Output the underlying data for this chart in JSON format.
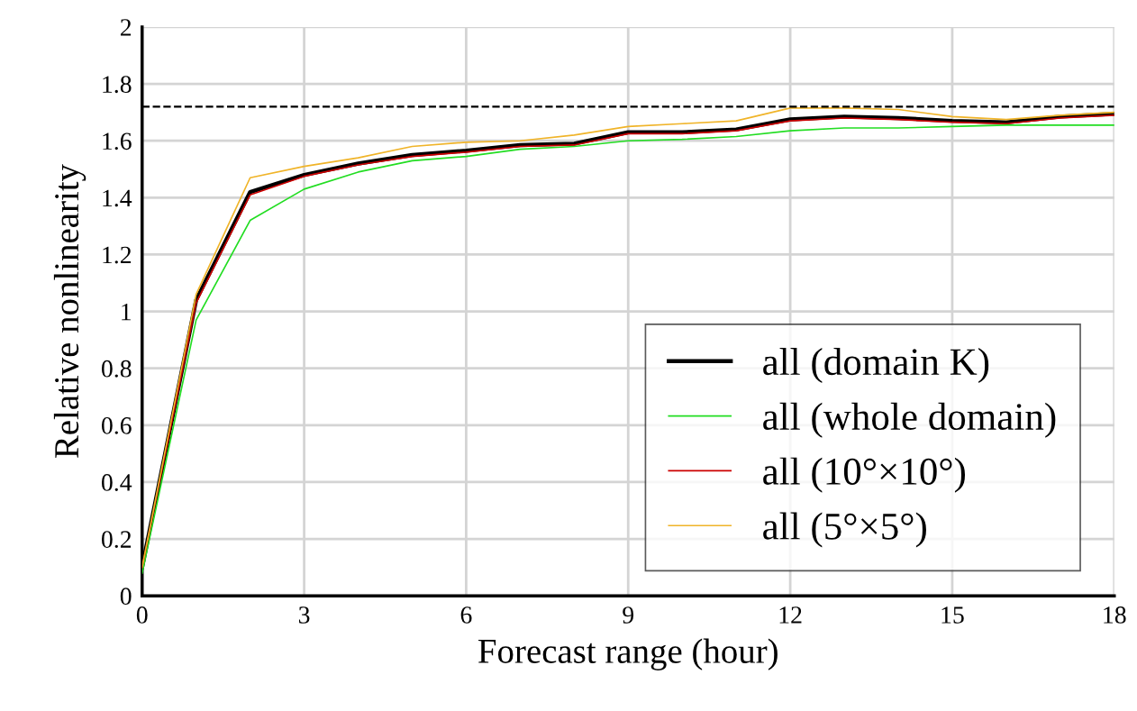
{
  "chart_data": {
    "type": "line",
    "xlabel": "Forecast range (hour)",
    "ylabel": "Relative nonlinearity",
    "x": [
      0,
      1,
      2,
      3,
      4,
      5,
      6,
      7,
      8,
      9,
      10,
      11,
      12,
      13,
      14,
      15,
      16,
      17,
      18
    ],
    "series": [
      {
        "name": "all (domain K)",
        "color": "#000000",
        "values": [
          0.1,
          1.04,
          1.42,
          1.48,
          1.52,
          1.55,
          1.565,
          1.585,
          1.59,
          1.63,
          1.63,
          1.64,
          1.675,
          1.685,
          1.68,
          1.67,
          1.665,
          1.685,
          1.695
        ]
      },
      {
        "name": "all (whole domain)",
        "color": "#22dd22",
        "values": [
          0.08,
          0.97,
          1.32,
          1.43,
          1.49,
          1.53,
          1.545,
          1.57,
          1.58,
          1.6,
          1.605,
          1.615,
          1.635,
          1.645,
          1.645,
          1.65,
          1.655,
          1.655,
          1.655
        ]
      },
      {
        "name": "all (10°×10°)",
        "color": "#cc0000",
        "values": [
          0.1,
          1.03,
          1.41,
          1.475,
          1.515,
          1.545,
          1.56,
          1.58,
          1.585,
          1.625,
          1.625,
          1.635,
          1.67,
          1.68,
          1.675,
          1.665,
          1.66,
          1.68,
          1.69
        ]
      },
      {
        "name": "all (5°×5°)",
        "color": "#f0b429",
        "values": [
          0.1,
          1.06,
          1.47,
          1.51,
          1.54,
          1.58,
          1.595,
          1.6,
          1.62,
          1.65,
          1.66,
          1.67,
          1.715,
          1.715,
          1.71,
          1.685,
          1.675,
          1.69,
          1.7
        ]
      }
    ],
    "xlim": [
      0,
      18
    ],
    "xticks": [
      0,
      3,
      6,
      9,
      12,
      15,
      18
    ],
    "ylim": [
      0,
      2
    ],
    "yticks": [
      0,
      0.2,
      0.4,
      0.6,
      0.8,
      1,
      1.2,
      1.4,
      1.6,
      1.8,
      2
    ],
    "ref_lines": [
      {
        "axis": "y",
        "value": 1.72,
        "color": "#000000",
        "line_style": "dashed"
      }
    ],
    "grid": true,
    "legend": "bottom right",
    "marker": "none",
    "line_style": "solid"
  }
}
